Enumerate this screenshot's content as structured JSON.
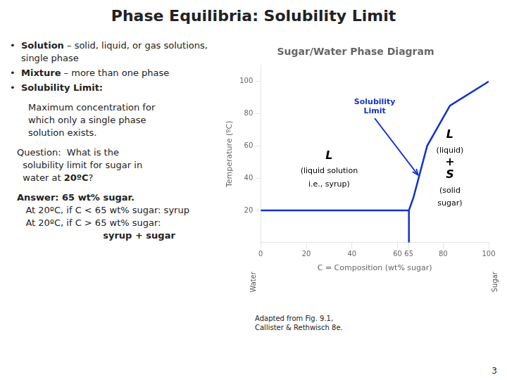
{
  "page_title": "Phase Equilibria: Solubility Limit",
  "page_text": [
    {
      "kind": "bullets",
      "lines": [
        [
          {
            "text": "•"
          },
          {
            "text": "Solution",
            "emphasis": true
          },
          {
            "text": " – solid, liquid, or gas solutions, single phase"
          }
        ],
        [
          {
            "text": "•"
          },
          {
            "text": "Mixture",
            "emphasis": true
          },
          {
            "text": " – more than one phase"
          }
        ],
        [
          {
            "text": "•"
          },
          {
            "text": "Solubility Limit:",
            "emphasis": true
          }
        ]
      ]
    },
    {
      "kind": "definition",
      "lines": [
        [
          {
            "text": "Maximum concentration for"
          }
        ],
        [
          {
            "text": "which only a single phase"
          }
        ],
        [
          {
            "text": "solution exists."
          }
        ]
      ]
    },
    {
      "kind": "question",
      "lines": [
        [
          {
            "text": "Question:  What is the"
          }
        ],
        [
          {
            "text": "  solubility limit for sugar in"
          }
        ],
        [
          {
            "text": "  water at "
          },
          {
            "text": "20ºC",
            "emphasis": true
          },
          {
            "text": "?"
          }
        ]
      ]
    },
    {
      "kind": "answer",
      "lines": [
        [
          {
            "text": "Answer: ",
            "emphasis": true
          },
          {
            "text": "65 wt% sugar.",
            "emphasis": true
          }
        ],
        [
          {
            "text": "   At 20ºC, if C < 65 wt% sugar: syrup"
          }
        ],
        [
          {
            "text": "   At 20ºC, if C > 65 wt% sugar:"
          }
        ],
        [
          {
            "text": "                           syrup + sugar",
            "emphasis": true
          }
        ]
      ]
    }
  ],
  "note": "Adapted from Fig. 9.1,\nCallister & Rethwisch 8e.",
  "page_number": "3",
  "chart_data": {
    "type": "line",
    "title": "Sugar/Water Phase Diagram",
    "x_label": "C = Composition (wt% sugar)",
    "y_label": "Temperature (ºC)",
    "series": [
      {
        "x": [
          0,
          65,
          67,
          73,
          83,
          100
        ],
        "values": [
          20,
          20,
          28,
          60,
          85,
          100
        ],
        "color": "#1133CC"
      },
      {
        "x": [
          65,
          65
        ],
        "values": [
          0,
          20
        ],
        "color": "#1133CC"
      }
    ],
    "xlim": [
      0,
      100
    ],
    "xticks": [
      0,
      20,
      40,
      60,
      65,
      80,
      100
    ],
    "ylim": [
      0,
      110
    ],
    "yticks": [
      20,
      40,
      60,
      80,
      100
    ],
    "grid": false,
    "marker": "none",
    "annotations": [
      {
        "text": "L",
        "x": 30,
        "y": 52
      },
      {
        "text": "(liquid solution",
        "x": 30,
        "y": 43
      },
      {
        "text": "i.e., syrup)",
        "x": 30,
        "y": 35
      },
      {
        "text": "L",
        "x": 83,
        "y": 65
      },
      {
        "text": "(liquid)",
        "x": 83,
        "y": 56
      },
      {
        "text": "+",
        "x": 83,
        "y": 48
      },
      {
        "text": "S",
        "x": 83,
        "y": 40
      },
      {
        "text": "(solid",
        "x": 83,
        "y": 31
      },
      {
        "text": "sugar)",
        "x": 83,
        "y": 23
      },
      {
        "text": "Solubility\nLimit",
        "x": 50,
        "y": 78,
        "arrow_to": [
          69,
          42
        ]
      },
      {
        "text": "Water",
        "x": -3,
        "y": -18,
        "vertical": true
      },
      {
        "text": "Sugar",
        "x": 103,
        "y": -18,
        "vertical": true
      }
    ]
  }
}
